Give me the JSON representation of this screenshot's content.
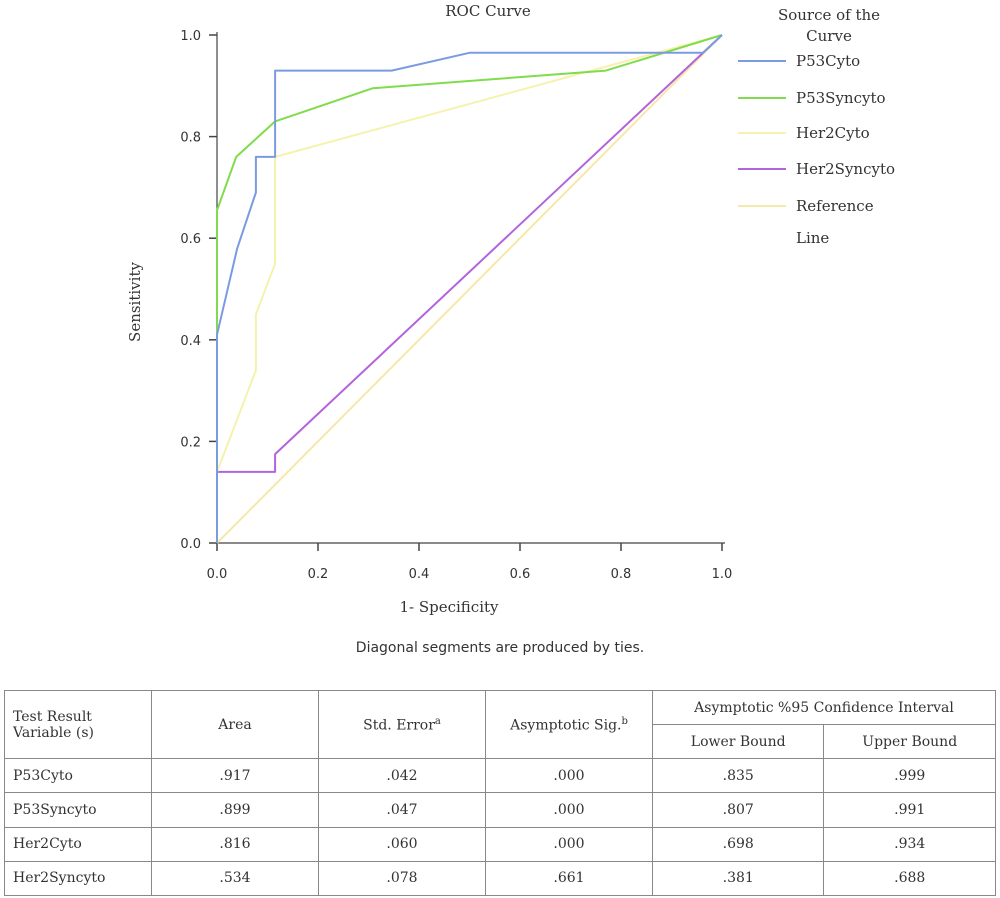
{
  "chart_data": {
    "type": "line",
    "title": "ROC  Curve",
    "xlabel": "1- Specificity",
    "ylabel": "Sensitivity",
    "xlim": [
      0,
      1
    ],
    "ylim": [
      0,
      1
    ],
    "x_ticks": [
      "0.0",
      "0.2",
      "0.4",
      "0.6",
      "0.8",
      "1.0"
    ],
    "y_ticks": [
      "0.0",
      "0.2",
      "0.4",
      "0.6",
      "0.8",
      "1.0"
    ],
    "grid": false,
    "legend_title": "Source of the Curve",
    "legend_position": "right",
    "series": [
      {
        "name": "P53Cyto",
        "color": "#7B9BE0",
        "points": [
          [
            0,
            0
          ],
          [
            0,
            0.41
          ],
          [
            0.04,
            0.58
          ],
          [
            0.077,
            0.69
          ],
          [
            0.077,
            0.76
          ],
          [
            0.115,
            0.76
          ],
          [
            0.115,
            0.93
          ],
          [
            0.346,
            0.93
          ],
          [
            0.5,
            0.965
          ],
          [
            0.962,
            0.965
          ],
          [
            1,
            1
          ]
        ]
      },
      {
        "name": "P53Syncyto",
        "color": "#80DC4C",
        "points": [
          [
            0,
            0
          ],
          [
            0,
            0.655
          ],
          [
            0.038,
            0.76
          ],
          [
            0.115,
            0.83
          ],
          [
            0.308,
            0.895
          ],
          [
            0.77,
            0.93
          ],
          [
            1,
            1
          ]
        ]
      },
      {
        "name": "Her2Cyto",
        "color": "#F6F2AE",
        "points": [
          [
            0,
            0
          ],
          [
            0,
            0.14
          ],
          [
            0.077,
            0.34
          ],
          [
            0.077,
            0.45
          ],
          [
            0.115,
            0.55
          ],
          [
            0.115,
            0.76
          ],
          [
            1,
            1
          ]
        ]
      },
      {
        "name": "Her2Syncyto",
        "color": "#B363DC",
        "points": [
          [
            0,
            0
          ],
          [
            0,
            0.14
          ],
          [
            0.115,
            0.14
          ],
          [
            0.115,
            0.175
          ],
          [
            1,
            1
          ]
        ]
      },
      {
        "name": "Reference Line",
        "color": "#F7E7A8",
        "points": [
          [
            0,
            0
          ],
          [
            1,
            1
          ]
        ]
      }
    ]
  },
  "footnote": "Diagonal segments are produced by ties.",
  "table": {
    "header": {
      "variable": "Test Result Variable (s)",
      "area": "Area",
      "std_error": "Std. Error",
      "std_error_sup": "a",
      "sig": "Asymptotic Sig.",
      "sig_sup": "b",
      "ci": "Asymptotic %95 Confidence Interval",
      "lower": "Lower Bound",
      "upper": "Upper Bound"
    },
    "rows": [
      {
        "name": "P53Cyto",
        "area": ".917",
        "se": ".042",
        "sig": ".000",
        "lower": ".835",
        "upper": ".999"
      },
      {
        "name": "P53Syncyto",
        "area": ".899",
        "se": ".047",
        "sig": ".000",
        "lower": ".807",
        "upper": ".991"
      },
      {
        "name": "Her2Cyto",
        "area": ".816",
        "se": ".060",
        "sig": ".000",
        "lower": ".698",
        "upper": ".934"
      },
      {
        "name": "Her2Syncyto",
        "area": ".534",
        "se": ".078",
        "sig": ".661",
        "lower": ".381",
        "upper": ".688"
      }
    ]
  }
}
